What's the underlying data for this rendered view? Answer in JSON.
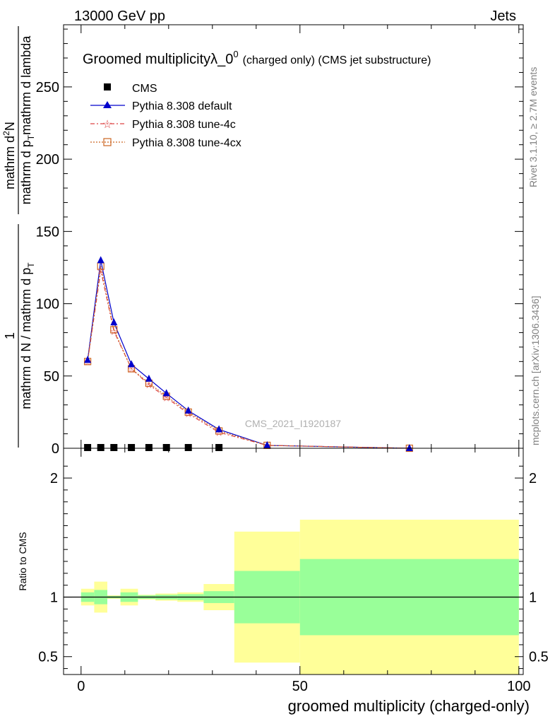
{
  "header": {
    "energy": "13000 GeV pp",
    "category": "Jets"
  },
  "side_labels": {
    "rivet": "Rivet 3.1.10, ≥ 2.7M events",
    "mcplots": "mcplots.cern.ch [arXiv:1306.3436]"
  },
  "watermark": "CMS_2021_I1920187",
  "colors": {
    "cms": "#000000",
    "default": "#0000cc",
    "tune4c": "#dd4444",
    "tune4cx": "#cc6622",
    "band_inner": "#99ff99",
    "band_outer": "#ffff99"
  },
  "chart_data": [
    {
      "type": "line",
      "title": "Groomed multiplicityλ_0",
      "title_superscript": "0",
      "title_suffix": "(charged only) (CMS jet substructure)",
      "ylabel": {
        "numerator_top": "mathrm d",
        "numerator_sup": "2",
        "numerator_end": "N",
        "denominator_start": "mathrm d p",
        "denominator_sub": "T",
        "denominator_end": "mathrm d lambda",
        "prefactor_num": "1",
        "prefactor_den": "mathrm d N / mathrm d p",
        "prefactor_sub": "T"
      },
      "xlim": [
        -4,
        101
      ],
      "ylim": [
        0,
        293
      ],
      "yticks": [
        0,
        50,
        100,
        150,
        200,
        250
      ],
      "yticklabels": [
        "0",
        "50",
        "100",
        "150",
        "200",
        "250"
      ],
      "grid": false,
      "legend_position": "top-left",
      "series": [
        {
          "name": "CMS",
          "marker": "square",
          "x": [
            1.5,
            4.5,
            7.5,
            11.5,
            15.5,
            19.5,
            24.5,
            31.5
          ],
          "y": [
            0.5,
            0.5,
            0.5,
            0.5,
            0.5,
            0.5,
            0.5,
            0.5
          ]
        },
        {
          "name": "Pythia 8.308 default",
          "marker": "triangle",
          "x": [
            1.5,
            4.5,
            7.5,
            11.5,
            15.5,
            19.5,
            24.5,
            31.5,
            42.5,
            75
          ],
          "y": [
            61,
            130,
            87,
            58,
            48,
            38,
            26,
            13,
            2,
            0
          ]
        },
        {
          "name": "Pythia 8.308 tune-4c",
          "marker": "star",
          "x": [
            1.5,
            4.5,
            7.5,
            11.5,
            15.5,
            19.5,
            24.5,
            31.5,
            42.5,
            75
          ],
          "y": [
            60,
            123,
            81,
            55,
            44,
            35,
            24,
            11,
            2,
            0
          ]
        },
        {
          "name": "Pythia 8.308 tune-4cx",
          "marker": "open-square",
          "x": [
            1.5,
            4.5,
            7.5,
            11.5,
            15.5,
            19.5,
            24.5,
            31.5,
            42.5,
            75
          ],
          "y": [
            60,
            126,
            82,
            55,
            45,
            36,
            25,
            12,
            2,
            0
          ]
        }
      ]
    },
    {
      "type": "area",
      "ylabel": "Ratio to CMS",
      "xlabel": "groomed multiplicity (charged-only)",
      "xlim": [
        -4,
        101
      ],
      "ylim": [
        0.35,
        2.25
      ],
      "xticks": [
        0,
        50,
        100
      ],
      "xticklabels": [
        "0",
        "50",
        "100"
      ],
      "yticks": [
        0.5,
        1,
        2
      ],
      "yticklabels": [
        "0.5",
        "1",
        "2"
      ],
      "reference_line": 1,
      "bins": [
        {
          "lo": 0,
          "hi": 3,
          "inner": [
            0.96,
            1.04
          ],
          "outer": [
            0.93,
            1.07
          ]
        },
        {
          "lo": 3,
          "hi": 6,
          "inner": [
            0.94,
            1.06
          ],
          "outer": [
            0.87,
            1.13
          ]
        },
        {
          "lo": 6,
          "hi": 9,
          "inner": [
            0.99,
            1.01
          ],
          "outer": [
            0.985,
            1.015
          ]
        },
        {
          "lo": 9,
          "hi": 13,
          "inner": [
            0.96,
            1.04
          ],
          "outer": [
            0.93,
            1.07
          ]
        },
        {
          "lo": 13,
          "hi": 17,
          "inner": [
            0.985,
            1.015
          ],
          "outer": [
            0.98,
            1.02
          ]
        },
        {
          "lo": 17,
          "hi": 22,
          "inner": [
            0.98,
            1.02
          ],
          "outer": [
            0.97,
            1.03
          ]
        },
        {
          "lo": 22,
          "hi": 28,
          "inner": [
            0.975,
            1.025
          ],
          "outer": [
            0.96,
            1.04
          ]
        },
        {
          "lo": 28,
          "hi": 35,
          "inner": [
            0.95,
            1.05
          ],
          "outer": [
            0.89,
            1.11
          ]
        },
        {
          "lo": 35,
          "hi": 50,
          "inner": [
            0.78,
            1.22
          ],
          "outer": [
            0.45,
            1.55
          ]
        },
        {
          "lo": 50,
          "hi": 100,
          "inner": [
            0.68,
            1.32
          ],
          "outer": [
            0.35,
            1.65
          ]
        }
      ]
    }
  ]
}
